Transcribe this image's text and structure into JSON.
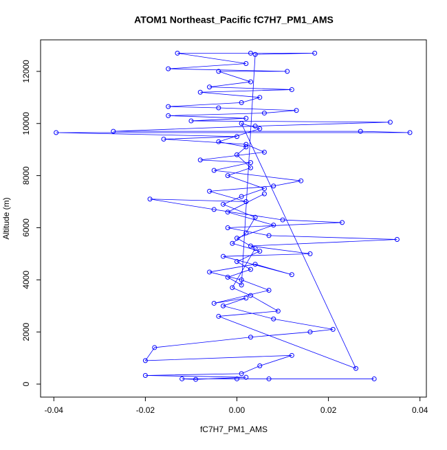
{
  "chart_data": {
    "type": "line",
    "markers": true,
    "title": "ATOM1 Northeast_Pacific fC7H7_PM1_AMS",
    "x_label": "fC7H7_PM1_AMS",
    "y_label": "Altitude (m)",
    "color": "#0000ff",
    "xlim": [
      -0.0429,
      0.0414
    ],
    "ylim": [
      -500,
      13210
    ],
    "xticks": [
      -0.04,
      -0.02,
      {
        "value": 0,
        "label": "0.00"
      },
      0.02,
      0.04
    ],
    "yticks": [
      0,
      2000,
      4000,
      6000,
      8000,
      10000,
      12000
    ],
    "x": [
      0.0,
      0.007,
      0.03,
      -0.012,
      -0.009,
      0.002,
      -0.02,
      0.001,
      0.005,
      0.012,
      -0.02,
      -0.018,
      0.003,
      0.016,
      0.021,
      0.008,
      -0.003,
      0.002,
      -0.005,
      0.007,
      0.001,
      -0.006,
      0.004,
      0.012,
      -0.003,
      0.016,
      0.003,
      0.035,
      0.007,
      -0.002,
      0.023,
      0.01,
      -0.005,
      -0.019,
      0.002,
      -0.006,
      0.008,
      0.014,
      -0.005,
      0.003,
      -0.008,
      0.006,
      0.002,
      -0.016,
      0.0,
      -0.0395,
      0.0378,
      0.027,
      -0.027,
      0.004,
      0.0335,
      -0.01,
      0.002,
      -0.015,
      0.006,
      0.013,
      -0.004,
      -0.015,
      0.001,
      0.005,
      -0.008,
      0.012,
      -0.006,
      0.003,
      -0.004,
      0.011,
      -0.015,
      0.002,
      -0.013,
      0.003,
      0.017,
      0.004,
      0.001,
      -0.002,
      0.003,
      0.0,
      0.005,
      -0.001,
      0.002,
      0.004,
      -0.003,
      0.001,
      0.006,
      -0.002,
      0.003,
      0.0,
      0.002,
      -0.004,
      0.005,
      0.001,
      0.026,
      -0.004,
      0.009,
      0.003,
      -0.001,
      0.004,
      0.0,
      0.008,
      -0.002,
      0.006
    ],
    "values": [
      200,
      200,
      200,
      200,
      180,
      260,
      330,
      400,
      700,
      1100,
      900,
      1400,
      1800,
      2000,
      2100,
      2500,
      3000,
      3300,
      3100,
      3600,
      4000,
      4300,
      4600,
      4200,
      4900,
      5000,
      5300,
      5550,
      5700,
      6000,
      6200,
      6300,
      6700,
      7100,
      7000,
      7400,
      7600,
      7800,
      8200,
      8500,
      8600,
      8900,
      9200,
      9400,
      9500,
      9650,
      9650,
      9700,
      9700,
      9900,
      10050,
      10100,
      10200,
      10300,
      10400,
      10500,
      10600,
      10650,
      10800,
      11000,
      11200,
      11300,
      11400,
      11600,
      12000,
      12000,
      12100,
      12300,
      12700,
      12700,
      12700,
      12650,
      3800,
      4100,
      4400,
      4700,
      5100,
      5400,
      5800,
      6400,
      6900,
      7200,
      7500,
      8000,
      8300,
      8800,
      9100,
      9300,
      9800,
      10000,
      600,
      2600,
      2800,
      3400,
      3700,
      5200,
      5600,
      6100,
      6600,
      7300
    ]
  }
}
